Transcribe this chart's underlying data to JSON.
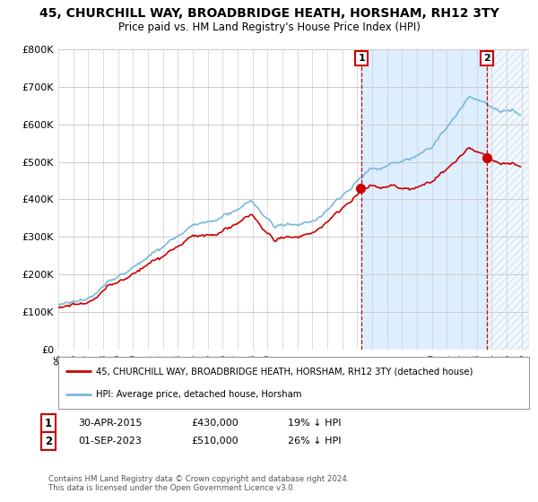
{
  "title": "45, CHURCHILL WAY, BROADBRIDGE HEATH, HORSHAM, RH12 3TY",
  "subtitle": "Price paid vs. HM Land Registry's House Price Index (HPI)",
  "legend_line1": "45, CHURCHILL WAY, BROADBRIDGE HEATH, HORSHAM, RH12 3TY (detached house)",
  "legend_line2": "HPI: Average price, detached house, Horsham",
  "sale1_date": "30-APR-2015",
  "sale1_price": 430000,
  "sale1_note": "19% ↓ HPI",
  "sale2_date": "01-SEP-2023",
  "sale2_price": 510000,
  "sale2_note": "26% ↓ HPI",
  "footnote": "Contains HM Land Registry data © Crown copyright and database right 2024.\nThis data is licensed under the Open Government Licence v3.0.",
  "hpi_color": "#7ab8d9",
  "price_color": "#cc0000",
  "vline_color": "#cc0000",
  "shade_color": "#ddeeff",
  "hatch_color": "#bbccdd",
  "plot_bg": "#ffffff",
  "grid_color": "#cccccc",
  "ylim": [
    0,
    800000
  ],
  "yticks": [
    0,
    100000,
    200000,
    300000,
    400000,
    500000,
    600000,
    700000,
    800000
  ],
  "xmin": 1995,
  "xmax": 2026.5,
  "sale1_year": 2015.29,
  "sale2_year": 2023.67
}
